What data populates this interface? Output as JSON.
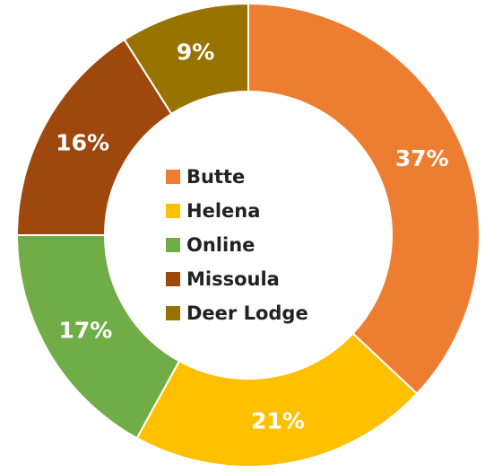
{
  "chart_data": {
    "type": "donut",
    "categories": [
      "Butte",
      "Helena",
      "Online",
      "Missoula",
      "Deer Lodge"
    ],
    "values": [
      37,
      21,
      17,
      16,
      9
    ],
    "value_labels": [
      "37%",
      "21%",
      "17%",
      "16%",
      "9%"
    ],
    "colors": [
      "#ed7d31",
      "#ffc000",
      "#70ad47",
      "#9e480e",
      "#997300"
    ],
    "legend": "center"
  }
}
